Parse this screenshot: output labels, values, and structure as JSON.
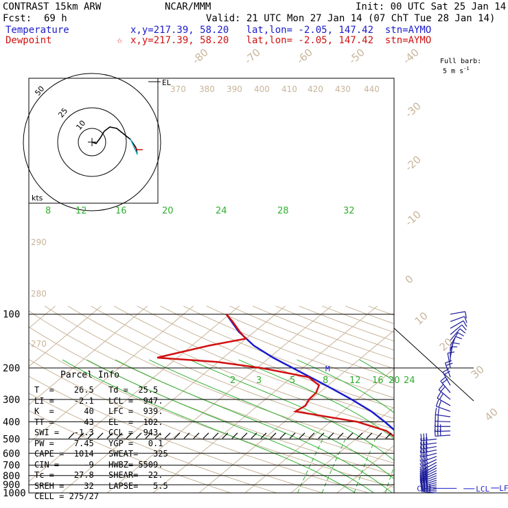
{
  "header": {
    "model": "CONTRAST 15km ARW",
    "center": "NCAR/MMM",
    "init": "Init: 00 UTC Sat 25 Jan 14",
    "fcst_label": "Fcst:",
    "fcst_value": "69 h",
    "valid": "Valid: 21 UTC Mon 27 Jan 14 (07 ChT Tue 28 Jan 14)"
  },
  "legend": {
    "temperature_label": "Temperature",
    "temperature_info": "x,y=217.39, 58.20   lat,lon= -2.05, 147.42  stn=AYMO",
    "dewpoint_label": "Dewpoint",
    "dewpoint_info": "x,y=217.39, 58.20   lat,lon= -2.05, 147.42  stn=AYMO"
  },
  "barb_header": {
    "line1": "Full barb:",
    "line2": "5 m s",
    "exp": "-1"
  },
  "hodograph": {
    "units": "kts",
    "ring_labels": [
      "10",
      "25",
      "50"
    ]
  },
  "parcel_info": {
    "title": "Parcel Info",
    "rows": [
      [
        "T  =    26.5",
        "Td =  25.5"
      ],
      [
        "LI =    -2.1",
        "LCL =  947."
      ],
      [
        "K  =      40",
        "LFC =  939."
      ],
      [
        "TT =      43",
        "EL  =  102."
      ],
      [
        "SWI =   -1.3",
        "CCL =  943."
      ],
      [
        "PW =    7.45",
        "YGP =   0.1"
      ],
      [
        "CAPE =  1014",
        "SWEAT=   325"
      ],
      [
        "CIN =     -9",
        "HWBZ= 5509."
      ],
      [
        "Tc =    27.8",
        "SHEAR=  22."
      ],
      [
        "SREH =    32",
        "LAPSE=   5.5"
      ],
      [
        "CELL = 275/27",
        ""
      ]
    ]
  },
  "level_labels": {
    "ccl": "CCL",
    "lcl": "LCL",
    "lfc": "LFC",
    "el": "EL",
    "m": "M"
  },
  "colors": {
    "temperature": "#1a1acc",
    "dewpoint": "#d01010",
    "isotherm_and_dry_adiabat": "#c8b49a",
    "moist_adiabat": "#30b030",
    "mixing_ratio": "#30b030",
    "barb": "#1a1a99"
  },
  "chart_data": {
    "type": "skew-t",
    "y_axis": "pressure (hPa), log scale",
    "ylim": [
      1000,
      100
    ],
    "pressure_ticks": [
      100,
      200,
      300,
      400,
      500,
      600,
      700,
      800,
      900,
      1000
    ],
    "isotherm_labels": [
      -80,
      -70,
      -60,
      -50,
      -40,
      -30,
      -20,
      -10,
      0,
      10,
      20,
      30,
      40
    ],
    "theta_labels": [
      270,
      280,
      290,
      370,
      380,
      390,
      400,
      410,
      420,
      430,
      440
    ],
    "moist_adiabat_labels": [
      8,
      12,
      16,
      20,
      24,
      28,
      32
    ],
    "mixing_ratio_labels": [
      2,
      3,
      5,
      8,
      12,
      16,
      20,
      24
    ],
    "series": [
      {
        "name": "Temperature",
        "points": [
          [
            1000,
            27.5
          ],
          [
            975,
            25.6
          ],
          [
            950,
            24.2
          ],
          [
            925,
            23.1
          ],
          [
            900,
            22.3
          ],
          [
            850,
            20.6
          ],
          [
            800,
            18.3
          ],
          [
            750,
            16
          ],
          [
            700,
            13.3
          ],
          [
            650,
            10.4
          ],
          [
            600,
            7.2
          ],
          [
            550,
            3.9
          ],
          [
            500,
            0.4
          ],
          [
            450,
            -3.5
          ],
          [
            400,
            -8.2
          ],
          [
            350,
            -13.8
          ],
          [
            300,
            -21.2
          ],
          [
            250,
            -30.5
          ],
          [
            200,
            -42.2
          ],
          [
            175,
            -49.2
          ],
          [
            150,
            -56.5
          ],
          [
            125,
            -63.5
          ],
          [
            100,
            -70.7
          ]
        ]
      },
      {
        "name": "Dewpoint",
        "points": [
          [
            1000,
            26.4
          ],
          [
            975,
            25.2
          ],
          [
            950,
            23.8
          ],
          [
            925,
            22.6
          ],
          [
            900,
            21.8
          ],
          [
            850,
            20
          ],
          [
            800,
            17.7
          ],
          [
            750,
            15.4
          ],
          [
            700,
            12.7
          ],
          [
            650,
            9.8
          ],
          [
            600,
            6.6
          ],
          [
            550,
            3.1
          ],
          [
            500,
            -0.9
          ],
          [
            450,
            -5.4
          ],
          [
            400,
            -14.2
          ],
          [
            350,
            -30.3
          ],
          [
            325,
            -29.6
          ],
          [
            300,
            -30.5
          ],
          [
            275,
            -30.7
          ],
          [
            250,
            -32
          ],
          [
            225,
            -36.4
          ],
          [
            200,
            -49
          ],
          [
            185,
            -60.2
          ],
          [
            175,
            -74.4
          ],
          [
            150,
            -66.3
          ],
          [
            137,
            -60.1
          ],
          [
            125,
            -63.3
          ],
          [
            110,
            -67.4
          ],
          [
            100,
            -70.7
          ]
        ]
      }
    ],
    "parcel_levels_hpa": {
      "LCL": 947,
      "LFC": 939,
      "CCL": 943,
      "EL": 102
    },
    "hodograph_uv_kts": [
      [
        0,
        0
      ],
      [
        3,
        -1
      ],
      [
        6,
        3
      ],
      [
        9,
        8
      ],
      [
        13,
        11
      ],
      [
        18,
        10
      ],
      [
        23,
        6
      ],
      [
        28,
        2
      ],
      [
        32,
        -4
      ],
      [
        33,
        -9
      ]
    ],
    "hodograph_storm_motion_kts": [
      [
        11,
        -1
      ],
      [
        13,
        -3
      ],
      [
        17,
        -3
      ]
    ],
    "barbs": [
      {
        "p": 1000,
        "dir": 275,
        "spd": 4
      },
      {
        "p": 975,
        "dir": 272,
        "spd": 4
      },
      {
        "p": 950,
        "dir": 268,
        "spd": 3
      },
      {
        "p": 925,
        "dir": 262,
        "spd": 3
      },
      {
        "p": 900,
        "dir": 258,
        "spd": 3
      },
      {
        "p": 875,
        "dir": 255,
        "spd": 3
      },
      {
        "p": 850,
        "dir": 252,
        "spd": 3
      },
      {
        "p": 825,
        "dir": 250,
        "spd": 3
      },
      {
        "p": 800,
        "dir": 248,
        "spd": 3
      },
      {
        "p": 775,
        "dir": 246,
        "spd": 3
      },
      {
        "p": 750,
        "dir": 244,
        "spd": 3
      },
      {
        "p": 725,
        "dir": 242,
        "spd": 3
      },
      {
        "p": 700,
        "dir": 240,
        "spd": 3
      },
      {
        "p": 675,
        "dir": 242,
        "spd": 3
      },
      {
        "p": 650,
        "dir": 245,
        "spd": 3
      },
      {
        "p": 625,
        "dir": 250,
        "spd": 3
      },
      {
        "p": 600,
        "dir": 255,
        "spd": 3
      },
      {
        "p": 575,
        "dir": 258,
        "spd": 3
      },
      {
        "p": 550,
        "dir": 260,
        "spd": 3
      },
      {
        "p": 525,
        "dir": 262,
        "spd": 3
      },
      {
        "p": 500,
        "dir": 264,
        "spd": 3
      },
      {
        "p": 475,
        "dir": 266,
        "spd": 3
      },
      {
        "p": 450,
        "dir": 268,
        "spd": 3
      },
      {
        "p": 425,
        "dir": 270,
        "spd": 2
      },
      {
        "p": 400,
        "dir": 272,
        "spd": 2
      },
      {
        "p": 375,
        "dir": 278,
        "spd": 2
      },
      {
        "p": 350,
        "dir": 290,
        "spd": 2
      },
      {
        "p": 325,
        "dir": 300,
        "spd": 2
      },
      {
        "p": 300,
        "dir": 310,
        "spd": 2
      },
      {
        "p": 275,
        "dir": 320,
        "spd": 2
      },
      {
        "p": 250,
        "dir": 330,
        "spd": 2
      },
      {
        "p": 225,
        "dir": 340,
        "spd": 2
      },
      {
        "p": 200,
        "dir": 350,
        "spd": 1
      },
      {
        "p": 185,
        "dir": 0,
        "spd": 1
      },
      {
        "p": 175,
        "dir": 10,
        "spd": 1
      },
      {
        "p": 160,
        "dir": 20,
        "spd": 1
      },
      {
        "p": 150,
        "dir": 30,
        "spd": 1
      },
      {
        "p": 140,
        "dir": 40,
        "spd": 1
      },
      {
        "p": 130,
        "dir": 50,
        "spd": 1
      },
      {
        "p": 120,
        "dir": 60,
        "spd": 1
      },
      {
        "p": 110,
        "dir": 70,
        "spd": 1
      },
      {
        "p": 100,
        "dir": 80,
        "spd": 1
      }
    ]
  }
}
